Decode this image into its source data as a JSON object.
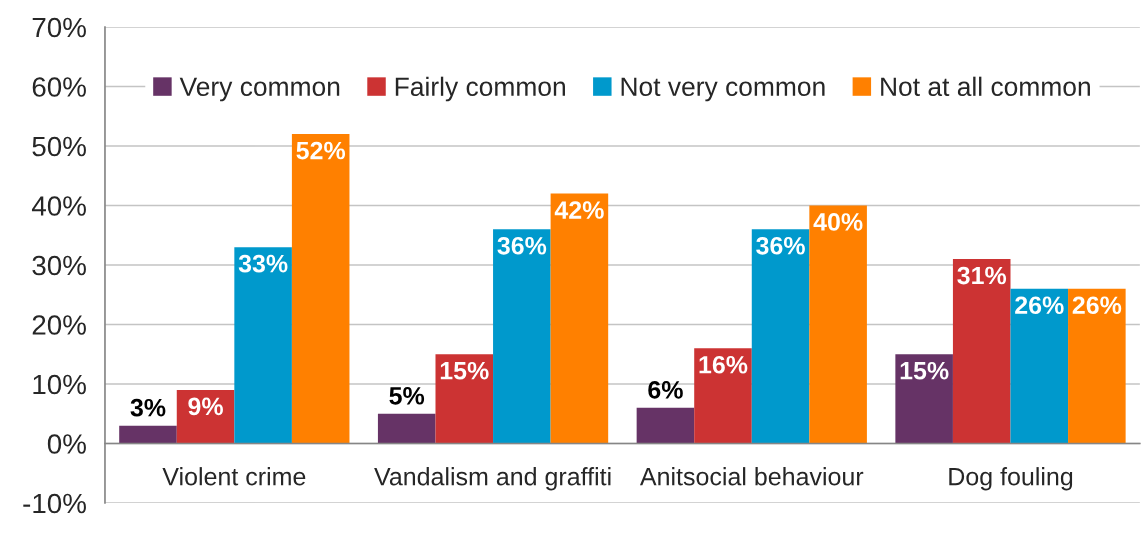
{
  "chart_data": {
    "type": "bar",
    "categories": [
      "Violent crime",
      "Vandalism and graffiti",
      "Anitsocial behaviour",
      "Dog fouling"
    ],
    "series": [
      {
        "name": "Very common",
        "color": "#663366",
        "values": [
          3,
          5,
          6,
          15
        ],
        "value_labels": [
          "3%",
          "5%",
          "6%",
          "15%"
        ]
      },
      {
        "name": "Fairly common",
        "color": "#cc3333",
        "values": [
          9,
          15,
          16,
          31
        ],
        "value_labels": [
          "9%",
          "15%",
          "16%",
          "31%"
        ]
      },
      {
        "name": "Not very common",
        "color": "#0099cc",
        "values": [
          33,
          36,
          36,
          26
        ],
        "value_labels": [
          "33%",
          "36%",
          "36%",
          "26%"
        ]
      },
      {
        "name": "Not at all common",
        "color": "#ff8000",
        "values": [
          52,
          42,
          40,
          26
        ],
        "value_labels": [
          "52%",
          "42%",
          "40%",
          "26%"
        ]
      }
    ],
    "ylim": [
      -10,
      70
    ],
    "yticks": [
      {
        "value": -10,
        "label": "-10%"
      },
      {
        "value": 0,
        "label": "0%"
      },
      {
        "value": 10,
        "label": "10%"
      },
      {
        "value": 20,
        "label": "20%"
      },
      {
        "value": 30,
        "label": "30%"
      },
      {
        "value": 40,
        "label": "40%"
      },
      {
        "value": 50,
        "label": "50%"
      },
      {
        "value": 60,
        "label": "60%"
      },
      {
        "value": 70,
        "label": "70%"
      }
    ],
    "grid": "y",
    "legend": "top"
  }
}
